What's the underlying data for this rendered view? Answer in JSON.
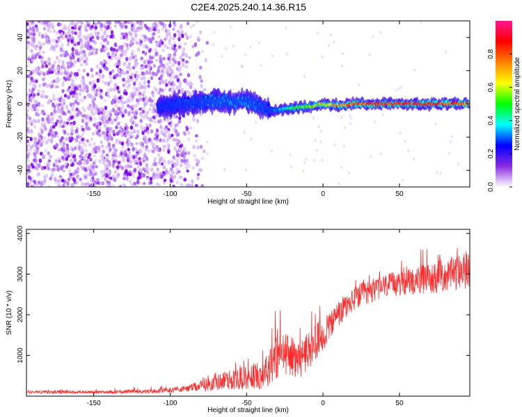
{
  "page_title": "C2E4.2025.240.14.36.R15",
  "chart_data": [
    {
      "type": "heatmap",
      "title": "C2E4.2025.240.14.36.R15",
      "xlabel": "Height of straight line (km)",
      "ylabel": "Frequency (Hz)",
      "xlim": [
        -194,
        96
      ],
      "ylim": [
        -50,
        50
      ],
      "x_ticks": [
        -150,
        -100,
        -50,
        0,
        50
      ],
      "y_ticks": [
        -40,
        -20,
        0,
        20,
        40
      ],
      "colorbar": {
        "label": "Normalized spectral amplitude",
        "range": [
          0,
          1
        ],
        "ticks": [
          0.0,
          0.2,
          0.4,
          0.6,
          0.8
        ],
        "tick_labels": [
          "0.0",
          "0.2",
          "0.4",
          "0.6",
          "0.8"
        ],
        "colormap": [
          "#ffffff",
          "#8a2be2",
          "#0000ff",
          "#00ffff",
          "#00ff00",
          "#ffff00",
          "#ff8000",
          "#ff0000",
          "#ff1493"
        ]
      },
      "ridge_center": [
        {
          "x": -108,
          "y": -2
        },
        {
          "x": -100,
          "y": -1
        },
        {
          "x": -90,
          "y": 0
        },
        {
          "x": -80,
          "y": 1
        },
        {
          "x": -70,
          "y": 2
        },
        {
          "x": -60,
          "y": 1
        },
        {
          "x": -50,
          "y": 2
        },
        {
          "x": -40,
          "y": -2
        },
        {
          "x": -34,
          "y": -4
        },
        {
          "x": -25,
          "y": -3
        },
        {
          "x": -15,
          "y": -2
        },
        {
          "x": -5,
          "y": -1
        },
        {
          "x": 0,
          "y": 0
        },
        {
          "x": 10,
          "y": -1
        },
        {
          "x": 20,
          "y": 0
        },
        {
          "x": 40,
          "y": 0
        },
        {
          "x": 60,
          "y": 0
        },
        {
          "x": 80,
          "y": 0
        },
        {
          "x": 96,
          "y": 0
        }
      ],
      "ridge_amplitude": [
        {
          "x": -108,
          "v": 0.25
        },
        {
          "x": -90,
          "v": 0.3
        },
        {
          "x": -70,
          "v": 0.35
        },
        {
          "x": -50,
          "v": 0.35
        },
        {
          "x": -34,
          "v": 0.3
        },
        {
          "x": -20,
          "v": 0.5
        },
        {
          "x": 0,
          "v": 0.7
        },
        {
          "x": 20,
          "v": 0.9
        },
        {
          "x": 50,
          "v": 0.95
        },
        {
          "x": 80,
          "v": 0.9
        },
        {
          "x": 96,
          "v": 0.85
        }
      ],
      "noise_region": {
        "x_from": -194,
        "x_to": -82,
        "level": 0.1
      }
    },
    {
      "type": "line",
      "xlabel": "Height of straight line (km)",
      "ylabel": "SNR (10 * v/v)",
      "xlim": [
        -194,
        96
      ],
      "ylim": [
        0,
        4100
      ],
      "x_ticks": [
        -150,
        -100,
        -50,
        0,
        50
      ],
      "y_ticks": [
        1000,
        2000,
        3000,
        4000
      ],
      "color": "#ff2a2a",
      "envelope": [
        {
          "x": -194,
          "mean": 100,
          "spread": 60
        },
        {
          "x": -150,
          "mean": 100,
          "spread": 60
        },
        {
          "x": -110,
          "mean": 120,
          "spread": 80
        },
        {
          "x": -90,
          "mean": 180,
          "spread": 120
        },
        {
          "x": -80,
          "mean": 250,
          "spread": 200
        },
        {
          "x": -65,
          "mean": 380,
          "spread": 350
        },
        {
          "x": -50,
          "mean": 450,
          "spread": 450
        },
        {
          "x": -38,
          "mean": 550,
          "spread": 600
        },
        {
          "x": -34,
          "mean": 900,
          "spread": 900
        },
        {
          "x": -25,
          "mean": 1050,
          "spread": 800
        },
        {
          "x": -15,
          "mean": 900,
          "spread": 700
        },
        {
          "x": -5,
          "mean": 1300,
          "spread": 700
        },
        {
          "x": 5,
          "mean": 1750,
          "spread": 600
        },
        {
          "x": 15,
          "mean": 2200,
          "spread": 500
        },
        {
          "x": 25,
          "mean": 2500,
          "spread": 450
        },
        {
          "x": 40,
          "mean": 2700,
          "spread": 450
        },
        {
          "x": 55,
          "mean": 2800,
          "spread": 500
        },
        {
          "x": 70,
          "mean": 2900,
          "spread": 600
        },
        {
          "x": 85,
          "mean": 3000,
          "spread": 650
        },
        {
          "x": 96,
          "mean": 3100,
          "spread": 700
        }
      ]
    }
  ]
}
